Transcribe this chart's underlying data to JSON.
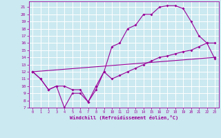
{
  "background_color": "#cbe9f0",
  "line_color": "#990099",
  "grid_color": "#ffffff",
  "xlabel": "Windchill (Refroidissement éolien,°C)",
  "xlim": [
    -0.5,
    23.5
  ],
  "ylim": [
    7,
    21.8
  ],
  "yticks": [
    7,
    8,
    9,
    10,
    11,
    12,
    13,
    14,
    15,
    16,
    17,
    18,
    19,
    20,
    21
  ],
  "xticks": [
    0,
    1,
    2,
    3,
    4,
    5,
    6,
    7,
    8,
    9,
    10,
    11,
    12,
    13,
    14,
    15,
    16,
    17,
    18,
    19,
    20,
    21,
    22,
    23
  ],
  "curve1_x": [
    0,
    1,
    2,
    3,
    4,
    5,
    6,
    7,
    8,
    9,
    10,
    11,
    12,
    13,
    14,
    15,
    16,
    17,
    18,
    19,
    20,
    21,
    22,
    23
  ],
  "curve1_y": [
    12,
    11,
    9.5,
    10,
    7,
    9,
    9,
    7.8,
    9.5,
    12,
    11,
    11.5,
    12,
    12.5,
    13,
    13.5,
    14,
    14.2,
    14.5,
    14.8,
    15,
    15.5,
    16,
    13.8
  ],
  "curve2_x": [
    0,
    1,
    2,
    3,
    4,
    5,
    6,
    7,
    8,
    9,
    10,
    11,
    12,
    13,
    14,
    15,
    16,
    17,
    18,
    19,
    20,
    21,
    22,
    23
  ],
  "curve2_y": [
    12,
    11,
    9.5,
    10,
    10,
    9.5,
    9.5,
    7.8,
    10,
    12,
    15.5,
    16,
    18,
    18.5,
    20,
    20,
    21,
    21.2,
    21.2,
    20.8,
    19,
    17,
    16,
    16
  ],
  "curve3_x": [
    0,
    23
  ],
  "curve3_y": [
    12,
    14
  ]
}
